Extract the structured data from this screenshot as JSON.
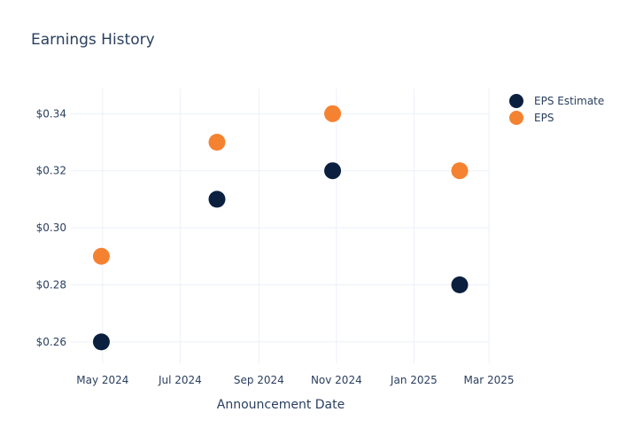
{
  "chart_data": {
    "type": "scatter",
    "title": "Earnings History",
    "xlabel": "Announcement Date",
    "ylabel": "",
    "x_ticks": [
      "May 2024",
      "Jul 2024",
      "Sep 2024",
      "Nov 2024",
      "Jan 2025",
      "Mar 2025"
    ],
    "y_ticks": [
      "$0.26",
      "$0.28",
      "$0.30",
      "$0.32",
      "$0.34"
    ],
    "xlim": [
      "2024-04-06",
      "2025-03-01"
    ],
    "ylim": [
      0.2525,
      0.3488
    ],
    "grid": true,
    "legend_position": "top-right",
    "series": [
      {
        "name": "EPS Estimate",
        "color": "#0b1f3f",
        "points": [
          {
            "x": "2024-04-30",
            "y": 0.26
          },
          {
            "x": "2024-07-30",
            "y": 0.31
          },
          {
            "x": "2024-10-29",
            "y": 0.32
          },
          {
            "x": "2025-02-06",
            "y": 0.28
          }
        ]
      },
      {
        "name": "EPS",
        "color": "#f58231",
        "points": [
          {
            "x": "2024-04-30",
            "y": 0.29
          },
          {
            "x": "2024-07-30",
            "y": 0.33
          },
          {
            "x": "2024-10-29",
            "y": 0.34
          },
          {
            "x": "2025-02-06",
            "y": 0.32
          }
        ]
      }
    ]
  }
}
